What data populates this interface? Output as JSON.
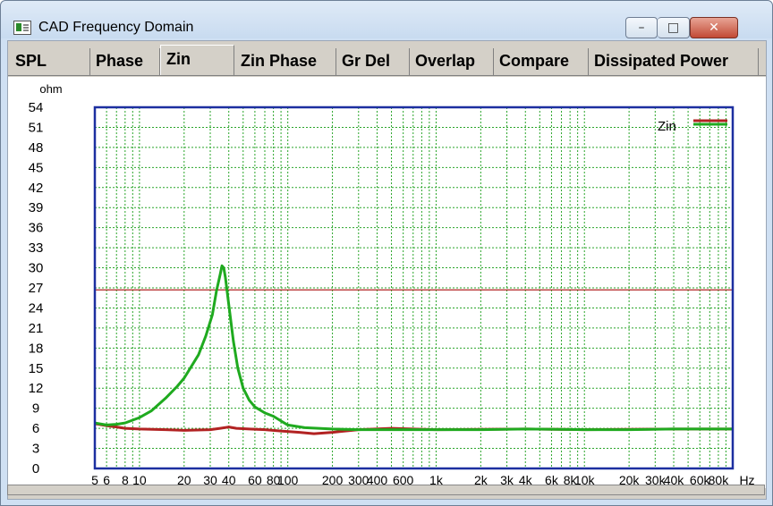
{
  "window": {
    "title": "CAD Frequency Domain",
    "min_glyph": "–",
    "max_glyph": "□",
    "close_glyph": "✕"
  },
  "tabs": [
    "SPL",
    "Phase",
    "Zin",
    "Zin Phase",
    "Gr Del",
    "Overlap",
    "Compare",
    "Dissipated Power"
  ],
  "active_tab": "Zin",
  "chart_data": {
    "type": "line",
    "ylabel": "ohm",
    "ylim": [
      0,
      54
    ],
    "y_ticks": [
      0,
      3,
      6,
      9,
      12,
      15,
      18,
      21,
      24,
      27,
      30,
      33,
      36,
      39,
      42,
      45,
      48,
      51,
      54
    ],
    "x_scale": "log",
    "xlim": [
      5,
      100000
    ],
    "x_tick_labels": [
      {
        "v": 5,
        "t": "5"
      },
      {
        "v": 6,
        "t": "6"
      },
      {
        "v": 8,
        "t": "8"
      },
      {
        "v": 10,
        "t": "10"
      },
      {
        "v": 20,
        "t": "20"
      },
      {
        "v": 30,
        "t": "30"
      },
      {
        "v": 40,
        "t": "40"
      },
      {
        "v": 60,
        "t": "60"
      },
      {
        "v": 80,
        "t": "80"
      },
      {
        "v": 100,
        "t": "100"
      },
      {
        "v": 200,
        "t": "200"
      },
      {
        "v": 300,
        "t": "300"
      },
      {
        "v": 400,
        "t": "400"
      },
      {
        "v": 600,
        "t": "600"
      },
      {
        "v": 1000,
        "t": "1k"
      },
      {
        "v": 2000,
        "t": "2k"
      },
      {
        "v": 3000,
        "t": "3k"
      },
      {
        "v": 4000,
        "t": "4k"
      },
      {
        "v": 6000,
        "t": "6k"
      },
      {
        "v": 8000,
        "t": "8k"
      },
      {
        "v": 10000,
        "t": "10k"
      },
      {
        "v": 20000,
        "t": "20k"
      },
      {
        "v": 30000,
        "t": "30k"
      },
      {
        "v": 40000,
        "t": "40k"
      },
      {
        "v": 60000,
        "t": "60k"
      },
      {
        "v": 80000,
        "t": "80k"
      },
      {
        "v": 100000,
        "t": "Hz"
      }
    ],
    "grid": true,
    "legend": "top-right",
    "reference_line": {
      "y": 26.7,
      "color": "#b22222"
    },
    "series": [
      {
        "name": "Zin",
        "color": "#1faa1f",
        "points": [
          [
            5,
            6.8
          ],
          [
            6,
            6.5
          ],
          [
            7,
            6.6
          ],
          [
            8,
            6.8
          ],
          [
            10,
            7.6
          ],
          [
            12,
            8.6
          ],
          [
            15,
            10.5
          ],
          [
            18,
            12.3
          ],
          [
            20,
            13.5
          ],
          [
            22,
            15.0
          ],
          [
            25,
            17.0
          ],
          [
            28,
            19.8
          ],
          [
            31,
            23.0
          ],
          [
            33,
            26.5
          ],
          [
            35,
            29.0
          ],
          [
            36,
            30.3
          ],
          [
            37,
            30.0
          ],
          [
            38,
            28.5
          ],
          [
            40,
            24.5
          ],
          [
            43,
            19.0
          ],
          [
            46,
            15.0
          ],
          [
            50,
            12.0
          ],
          [
            55,
            10.2
          ],
          [
            60,
            9.2
          ],
          [
            70,
            8.3
          ],
          [
            80,
            7.8
          ],
          [
            90,
            7.1
          ],
          [
            100,
            6.5
          ],
          [
            130,
            6.1
          ],
          [
            200,
            5.9
          ],
          [
            300,
            5.8
          ],
          [
            500,
            5.8
          ],
          [
            1000,
            5.8
          ],
          [
            2000,
            5.8
          ],
          [
            4000,
            5.9
          ],
          [
            10000,
            5.8
          ],
          [
            20000,
            5.8
          ],
          [
            40000,
            5.9
          ],
          [
            100000,
            5.9
          ]
        ]
      },
      {
        "name": "",
        "color": "#b22222",
        "points": [
          [
            5,
            6.7
          ],
          [
            6,
            6.4
          ],
          [
            7,
            6.2
          ],
          [
            8,
            6.0
          ],
          [
            10,
            5.9
          ],
          [
            15,
            5.8
          ],
          [
            20,
            5.7
          ],
          [
            30,
            5.8
          ],
          [
            35,
            6.0
          ],
          [
            40,
            6.2
          ],
          [
            45,
            6.0
          ],
          [
            55,
            5.9
          ],
          [
            70,
            5.8
          ],
          [
            90,
            5.6
          ],
          [
            120,
            5.4
          ],
          [
            150,
            5.2
          ],
          [
            200,
            5.4
          ],
          [
            300,
            5.8
          ],
          [
            500,
            6.0
          ],
          [
            700,
            5.9
          ],
          [
            1000,
            5.8
          ],
          [
            4000,
            5.9
          ],
          [
            10000,
            5.8
          ],
          [
            40000,
            5.9
          ],
          [
            100000,
            5.9
          ]
        ]
      }
    ]
  }
}
